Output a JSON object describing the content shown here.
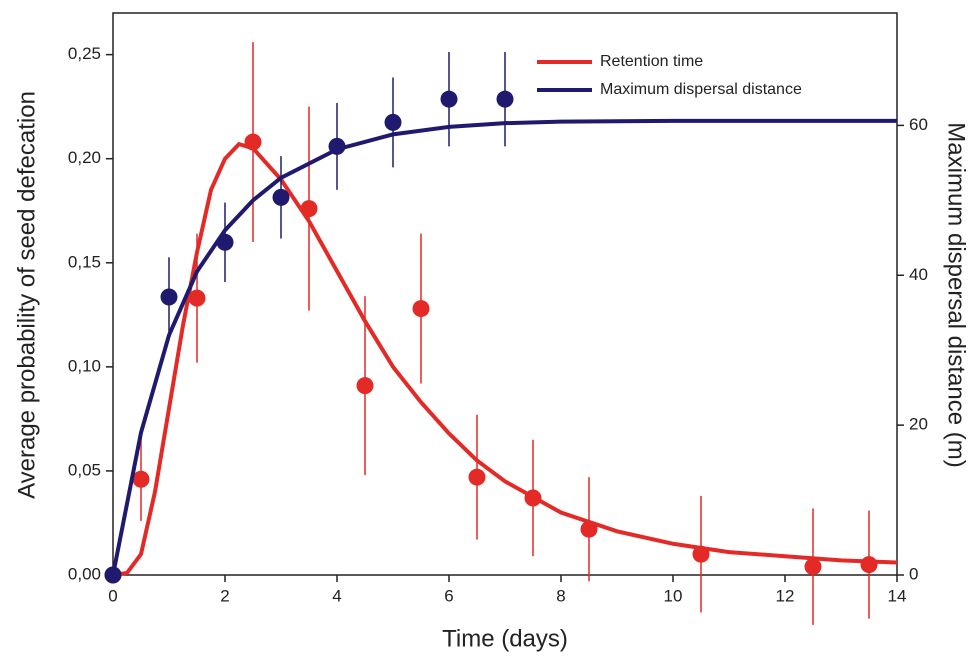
{
  "chart_data": {
    "type": "scatter-fit",
    "xlabel": "Time (days)",
    "ylabel": "Average probability of seed defecation",
    "y2label": "Maximum dispersal distance (m)",
    "xlim": [
      0,
      14
    ],
    "xticks": [
      0,
      2,
      4,
      6,
      8,
      10,
      12,
      14
    ],
    "ylim": [
      0,
      0.27
    ],
    "yticks": [
      {
        "value": 0,
        "label": "0,00"
      },
      {
        "value": 0.05,
        "label": "0,05"
      },
      {
        "value": 0.1,
        "label": "0,10"
      },
      {
        "value": 0.15,
        "label": "0,15"
      },
      {
        "value": 0.2,
        "label": "0,20"
      },
      {
        "value": 0.25,
        "label": "0,25"
      }
    ],
    "y2lim": [
      0,
      75
    ],
    "y2ticks": [
      0,
      20,
      40,
      60
    ],
    "legend": "upper right",
    "series": [
      {
        "name": "Retention time",
        "color": "#e32a26",
        "x": [
          0,
          0.5,
          1.5,
          2.5,
          3.5,
          4.5,
          5.5,
          6.5,
          7.5,
          8.5,
          10.5,
          12.5,
          13.5
        ],
        "values": [
          0,
          0.046,
          0.133,
          0.208,
          0.176,
          0.091,
          0.128,
          0.047,
          0.037,
          0.022,
          0.01,
          0.004,
          0.005
        ],
        "errors": [
          0,
          0.02,
          0.031,
          0.048,
          0.049,
          0.043,
          0.036,
          0.03,
          0.028,
          0.025,
          0.028,
          0.028,
          0.026
        ],
        "fit": {
          "x": [
            0,
            0.25,
            0.5,
            0.75,
            1,
            1.25,
            1.5,
            1.75,
            2,
            2.25,
            2.5,
            3,
            3.5,
            4,
            4.5,
            5,
            5.5,
            6,
            6.5,
            7,
            8,
            9,
            10,
            11,
            12,
            13,
            14
          ],
          "values": [
            0,
            0.001,
            0.01,
            0.04,
            0.08,
            0.12,
            0.155,
            0.185,
            0.2,
            0.207,
            0.205,
            0.19,
            0.17,
            0.146,
            0.122,
            0.1,
            0.083,
            0.068,
            0.055,
            0.045,
            0.03,
            0.021,
            0.015,
            0.011,
            0.009,
            0.007,
            0.006
          ]
        }
      },
      {
        "name": "Maximum dispersal distance",
        "color": "#1f1a6e",
        "axis": "y2",
        "x": [
          0,
          1,
          2,
          3,
          4,
          5,
          6,
          7
        ],
        "values": [
          0,
          37.1,
          44.4,
          50.4,
          57.2,
          60.4,
          63.5,
          63.5
        ],
        "errors": [
          0,
          5.3,
          5.3,
          5.5,
          5.8,
          6,
          6.3,
          6.3
        ],
        "fit": {
          "x": [
            0,
            0.5,
            1,
            1.5,
            2,
            2.5,
            3,
            4,
            5,
            6,
            7,
            8,
            10,
            12,
            14
          ],
          "values": [
            0,
            19,
            32,
            40.5,
            46,
            50,
            53,
            56.8,
            58.8,
            59.8,
            60.3,
            60.5,
            60.6,
            60.6,
            60.6
          ]
        }
      }
    ]
  }
}
